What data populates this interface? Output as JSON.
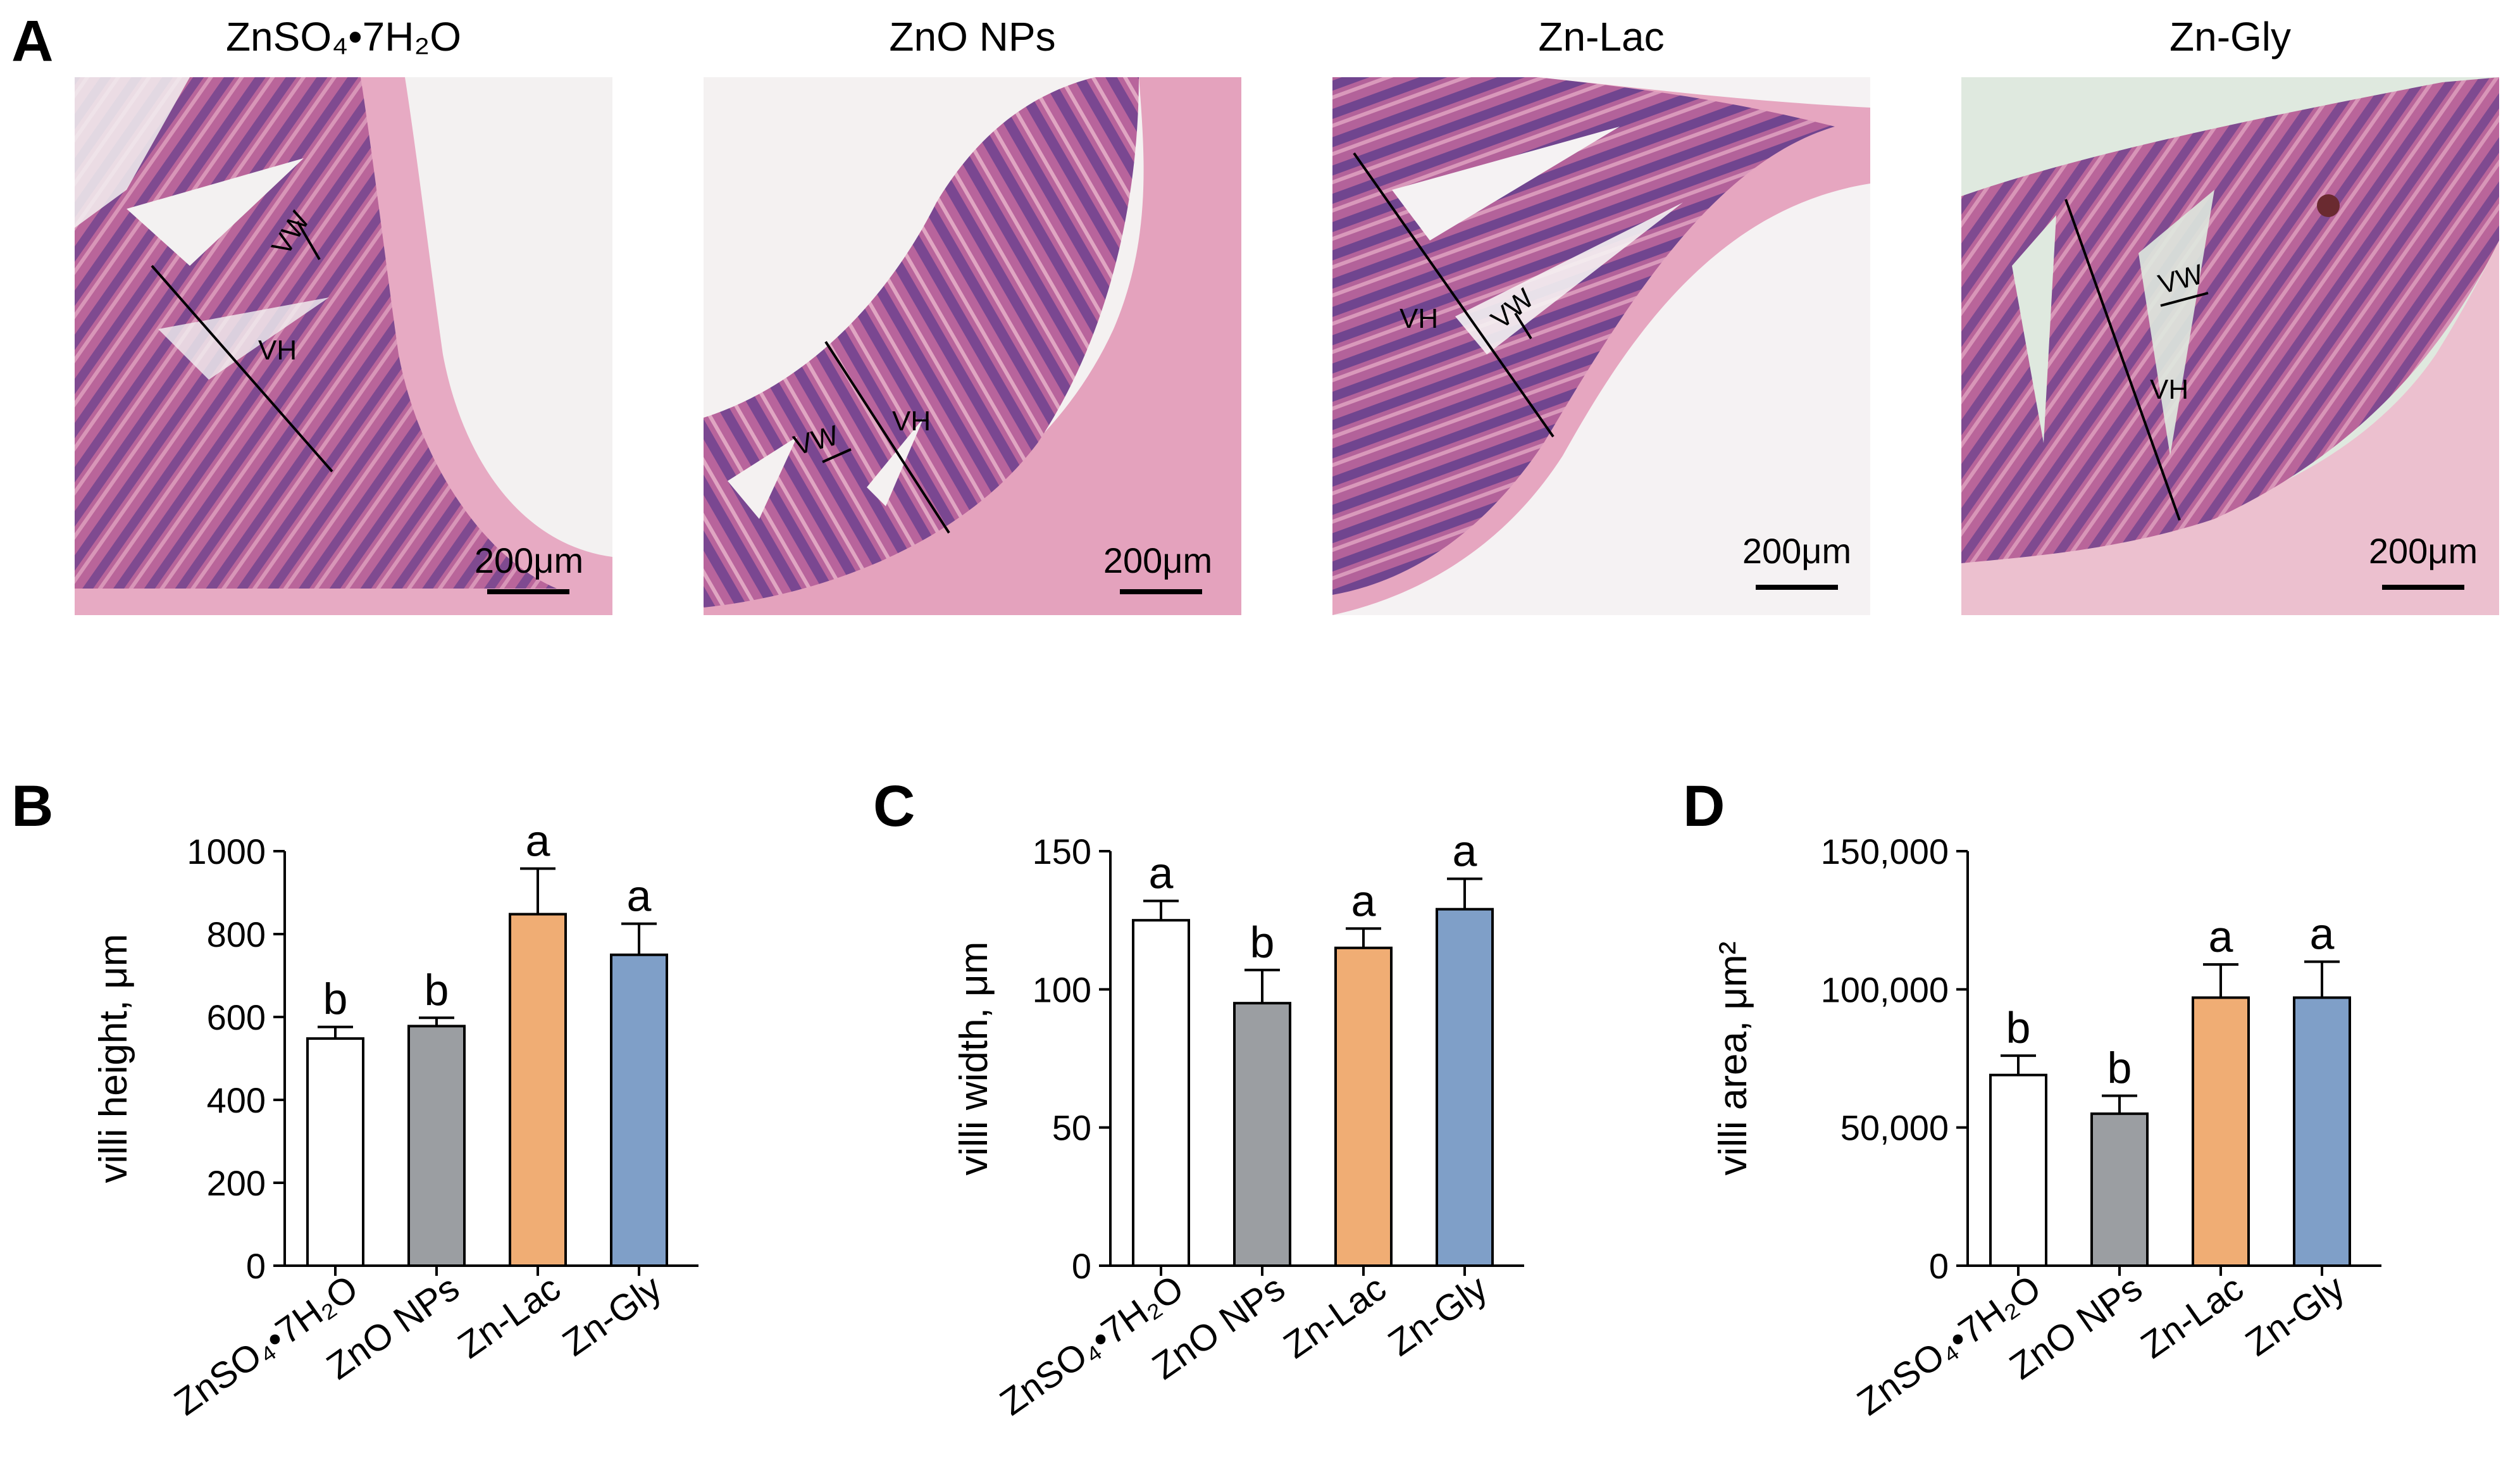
{
  "panel_a": {
    "letter": "A",
    "images": [
      {
        "title": "ZnSO₄•7H₂O",
        "scalebar": "200μm",
        "vh": "VH",
        "vw": "VW"
      },
      {
        "title": "ZnO NPs",
        "scalebar": "200μm",
        "vh": "VH",
        "vw": "VW"
      },
      {
        "title": "Zn-Lac",
        "scalebar": "200μm",
        "vh": "VH",
        "vw": "VW"
      },
      {
        "title": "Zn-Gly",
        "scalebar": "200μm",
        "vh": "VH",
        "vw": "VW"
      }
    ]
  },
  "colors": {
    "bar_colors": [
      "#ffffff",
      "#9b9ea2",
      "#f0ad74",
      "#7f9fc8"
    ],
    "tissue_pink": "#c9709e",
    "tissue_purple": "#8d4f94",
    "background_slide": "#f3f1f1",
    "background_slide_4": "#dfe9df"
  },
  "chart_data": [
    {
      "panel": "B",
      "type": "bar",
      "ylabel": "villi height, μm",
      "ylim": [
        0,
        1000
      ],
      "yticks": [
        "0",
        "200",
        "400",
        "600",
        "800",
        "1000"
      ],
      "ytick_values": [
        0,
        200,
        400,
        600,
        800,
        1000
      ],
      "categories": [
        "ZnSO₄•7H₂O",
        "ZnO NPs",
        "Zn-Lac",
        "Zn-Gly"
      ],
      "values": [
        548,
        578,
        848,
        750
      ],
      "errors": [
        28,
        20,
        110,
        75
      ],
      "significance": [
        "b",
        "b",
        "a",
        "a"
      ]
    },
    {
      "panel": "C",
      "type": "bar",
      "ylabel": "villi width, μm",
      "ylim": [
        0,
        150
      ],
      "yticks": [
        "0",
        "50",
        "100",
        "150"
      ],
      "ytick_values": [
        0,
        50,
        100,
        150
      ],
      "categories": [
        "ZnSO₄•7H₂O",
        "ZnO NPs",
        "Zn-Lac",
        "Zn-Gly"
      ],
      "values": [
        125,
        95,
        115,
        129
      ],
      "errors": [
        7,
        12,
        7,
        11
      ],
      "significance": [
        "a",
        "b",
        "a",
        "a"
      ]
    },
    {
      "panel": "D",
      "type": "bar",
      "ylabel": "villi area, μm²",
      "ylim": [
        0,
        150000
      ],
      "yticks": [
        "0",
        "50,000",
        "100,000",
        "150,000"
      ],
      "ytick_values": [
        0,
        50000,
        100000,
        150000
      ],
      "categories": [
        "ZnSO₄•7H₂O",
        "ZnO NPs",
        "Zn-Lac",
        "Zn-Gly"
      ],
      "values": [
        69000,
        55000,
        97000,
        97000
      ],
      "errors": [
        7000,
        6500,
        12000,
        13000
      ],
      "significance": [
        "b",
        "b",
        "a",
        "a"
      ]
    }
  ]
}
